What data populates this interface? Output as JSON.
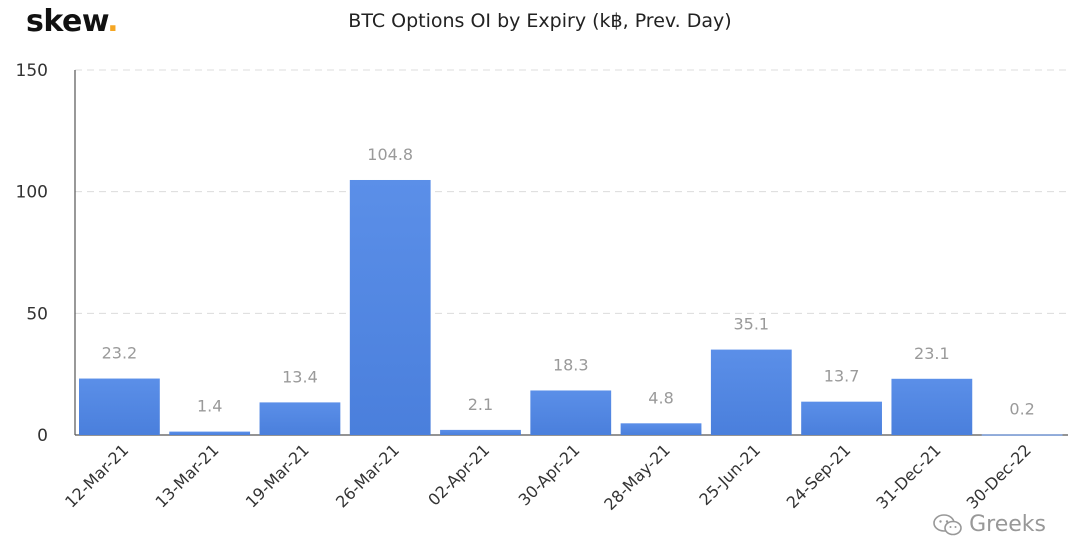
{
  "brand": {
    "name": "skew",
    "dot": "."
  },
  "watermark": {
    "text": "Greeks",
    "icon": "wechat-icon"
  },
  "colors": {
    "bar": "#5b8fe8",
    "bar_dark": "#4a7fdc",
    "label": "#9a9a9a",
    "axis_text": "#333333",
    "grid": "#dcdcdc"
  },
  "chart_data": {
    "type": "bar",
    "title": "BTC Options OI by Expiry (k฿, Prev. Day)",
    "xlabel": "",
    "ylabel": "",
    "ylim": [
      0,
      150
    ],
    "yticks": [
      0,
      50,
      100,
      150
    ],
    "grid": true,
    "categories": [
      "12-Mar-21",
      "13-Mar-21",
      "19-Mar-21",
      "26-Mar-21",
      "02-Apr-21",
      "30-Apr-21",
      "28-May-21",
      "25-Jun-21",
      "24-Sep-21",
      "31-Dec-21",
      "30-Dec-22"
    ],
    "values": [
      23.2,
      1.4,
      13.4,
      104.8,
      2.1,
      18.3,
      4.8,
      35.1,
      13.7,
      23.1,
      0.2
    ],
    "value_labels": [
      "23.2",
      "1.4",
      "13.4",
      "104.8",
      "2.1",
      "18.3",
      "4.8",
      "35.1",
      "13.7",
      "23.1",
      "0.2"
    ]
  }
}
